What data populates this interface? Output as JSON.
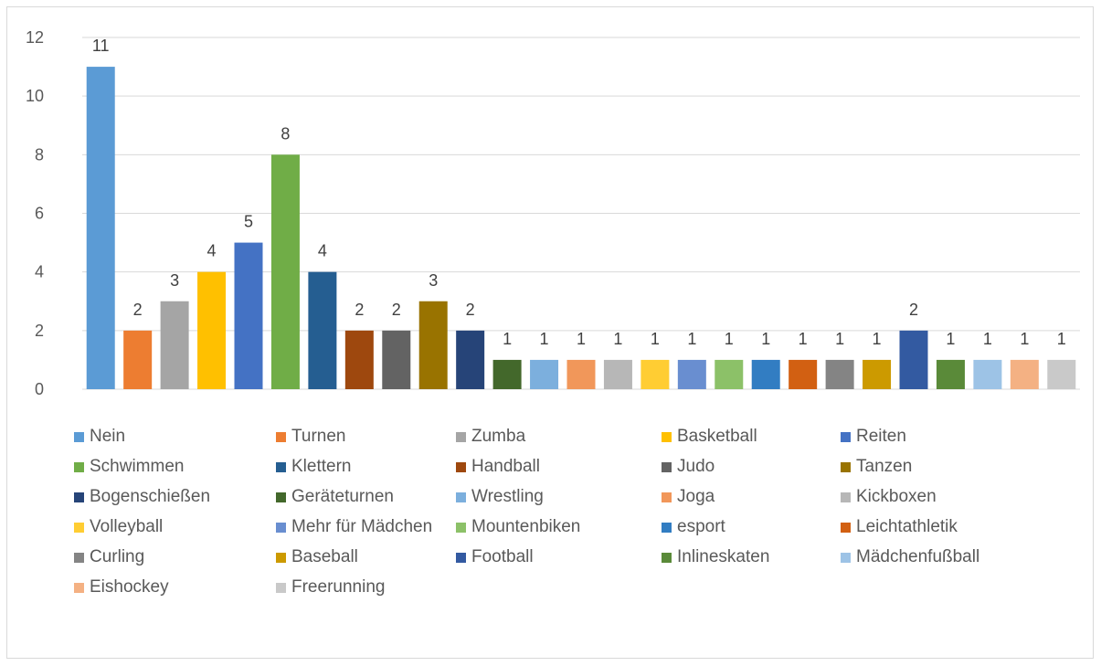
{
  "chart_data": {
    "type": "bar",
    "title": "",
    "xlabel": "",
    "ylabel": "",
    "ylim": [
      0,
      12
    ],
    "yticks": [
      0,
      2,
      4,
      6,
      8,
      10,
      12
    ],
    "grid": true,
    "legend_position": "bottom",
    "categories": [
      "Nein",
      "Turnen",
      "Zumba",
      "Basketball",
      "Reiten",
      "Schwimmen",
      "Klettern",
      "Handball",
      "Judo",
      "Tanzen",
      "Bogenschießen",
      "Geräteturnen",
      "Wrestling",
      "Joga",
      "Kickboxen",
      "Volleyball",
      "Mehr für Mädchen",
      "Mountenbiken",
      "esport",
      "Leichtathletik",
      "Curling",
      "Baseball",
      "Football",
      "Inlineskaten",
      "Mädchenfußball",
      "Eishockey",
      "Freerunning"
    ],
    "values": [
      11,
      2,
      3,
      4,
      5,
      8,
      4,
      2,
      2,
      3,
      2,
      1,
      1,
      1,
      1,
      1,
      1,
      1,
      1,
      1,
      1,
      1,
      2,
      1,
      1,
      1,
      1
    ],
    "colors": [
      "#5b9bd5",
      "#ed7d31",
      "#a5a5a5",
      "#ffc000",
      "#4472c4",
      "#70ad47",
      "#255e91",
      "#9e480e",
      "#636363",
      "#997300",
      "#264478",
      "#43682b",
      "#7cafdd",
      "#f1975a",
      "#b7b7b7",
      "#ffcd33",
      "#698ed0",
      "#8cc168",
      "#327dc2",
      "#d26012",
      "#848484",
      "#cc9a00",
      "#335aa1",
      "#5a8a39",
      "#9dc3e6",
      "#f4b183",
      "#c9c9c9"
    ]
  }
}
